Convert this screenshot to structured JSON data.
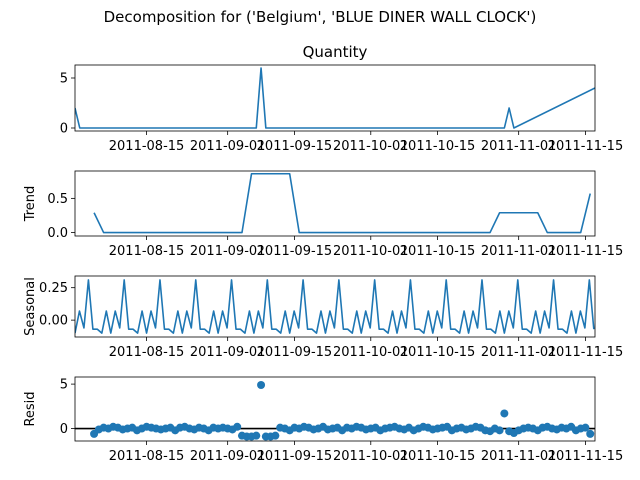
{
  "figure": {
    "suptitle": "Decomposition for ('Belgium', 'BLUE DINER WALL CLOCK')",
    "line_color": "#1f77b4",
    "zero_line_color": "#000000"
  },
  "chart_data": [
    {
      "type": "line",
      "title": "Quantity",
      "ylabel": "",
      "x_range": [
        "2011-07-31",
        "2011-11-17"
      ],
      "x_ticks": [
        "2011-08-15",
        "2011-09-01",
        "2011-09-15",
        "2011-10-01",
        "2011-10-15",
        "2011-11-01",
        "2011-11-15"
      ],
      "ylim": [
        -0.3,
        6.3
      ],
      "y_ticks": [
        0,
        5
      ],
      "y_tick_labels": [
        "0",
        "5"
      ],
      "series": [
        {
          "x": [
            "2011-07-31",
            "2011-08-01",
            "2011-09-07",
            "2011-09-08",
            "2011-09-09",
            "2011-10-29",
            "2011-10-30",
            "2011-10-31",
            "2011-11-17"
          ],
          "values": [
            2,
            0,
            0,
            6,
            0,
            0,
            2,
            0,
            4
          ]
        }
      ]
    },
    {
      "type": "line",
      "title": "",
      "ylabel": "Trend",
      "x_range": [
        "2011-07-31",
        "2011-11-17"
      ],
      "x_ticks": [
        "2011-08-15",
        "2011-09-01",
        "2011-09-15",
        "2011-10-01",
        "2011-10-15",
        "2011-11-01",
        "2011-11-15"
      ],
      "ylim": [
        -0.05,
        0.9
      ],
      "y_ticks": [
        0,
        0.5
      ],
      "y_tick_labels": [
        "0.0",
        "0.5"
      ],
      "series": [
        {
          "x": [
            "2011-08-04",
            "2011-08-06",
            "2011-09-04",
            "2011-09-06",
            "2011-09-14",
            "2011-09-16",
            "2011-10-26",
            "2011-10-28",
            "2011-11-05",
            "2011-11-07",
            "2011-11-14",
            "2011-11-16"
          ],
          "values": [
            0.29,
            0.0,
            0.0,
            0.86,
            0.86,
            0.0,
            0.0,
            0.29,
            0.29,
            0.0,
            0.0,
            0.57
          ]
        }
      ]
    },
    {
      "type": "line",
      "title": "",
      "ylabel": "Seasonal",
      "x_range": [
        "2011-07-31",
        "2011-11-17"
      ],
      "x_ticks": [
        "2011-08-15",
        "2011-09-01",
        "2011-09-15",
        "2011-10-01",
        "2011-10-15",
        "2011-11-01",
        "2011-11-15"
      ],
      "ylim": [
        -0.13,
        0.34
      ],
      "y_ticks": [
        0.25,
        0.0
      ],
      "y_tick_labels": [
        "0.25",
        "0.00"
      ],
      "seasonal_pattern": [
        -0.1,
        0.07,
        -0.06,
        0.31,
        -0.07,
        -0.07,
        -0.1,
        0.07
      ],
      "period_days": 7.5
    },
    {
      "type": "scatter",
      "title": "",
      "ylabel": "Resid",
      "x_range": [
        "2011-07-31",
        "2011-11-17"
      ],
      "x_ticks": [
        "2011-08-15",
        "2011-09-01",
        "2011-09-15",
        "2011-10-01",
        "2011-10-15",
        "2011-11-01",
        "2011-11-15"
      ],
      "ylim": [
        -1.4,
        5.8
      ],
      "y_ticks": [
        5,
        0
      ],
      "y_tick_labels": [
        "5",
        "0"
      ],
      "zero_line": true,
      "series": [
        {
          "x": [
            "2011-08-04",
            "2011-08-05",
            "2011-08-06",
            "2011-08-07",
            "2011-08-08",
            "2011-08-09",
            "2011-08-10",
            "2011-08-11",
            "2011-08-12",
            "2011-08-13",
            "2011-08-14",
            "2011-08-15",
            "2011-08-16",
            "2011-08-17",
            "2011-08-18",
            "2011-08-19",
            "2011-08-20",
            "2011-08-21",
            "2011-08-22",
            "2011-08-23",
            "2011-08-24",
            "2011-08-25",
            "2011-08-26",
            "2011-08-27",
            "2011-08-28",
            "2011-08-29",
            "2011-08-30",
            "2011-08-31",
            "2011-09-01",
            "2011-09-02",
            "2011-09-03",
            "2011-09-04",
            "2011-09-05",
            "2011-09-06",
            "2011-09-07",
            "2011-09-08",
            "2011-09-09",
            "2011-09-10",
            "2011-09-11",
            "2011-09-12",
            "2011-09-13",
            "2011-09-14",
            "2011-09-15",
            "2011-09-16",
            "2011-09-17",
            "2011-09-18",
            "2011-09-19",
            "2011-09-20",
            "2011-09-21",
            "2011-09-22",
            "2011-09-23",
            "2011-09-24",
            "2011-09-25",
            "2011-09-26",
            "2011-09-27",
            "2011-09-28",
            "2011-09-29",
            "2011-09-30",
            "2011-10-01",
            "2011-10-02",
            "2011-10-03",
            "2011-10-04",
            "2011-10-05",
            "2011-10-06",
            "2011-10-07",
            "2011-10-08",
            "2011-10-09",
            "2011-10-10",
            "2011-10-11",
            "2011-10-12",
            "2011-10-13",
            "2011-10-14",
            "2011-10-15",
            "2011-10-16",
            "2011-10-17",
            "2011-10-18",
            "2011-10-19",
            "2011-10-20",
            "2011-10-21",
            "2011-10-22",
            "2011-10-23",
            "2011-10-24",
            "2011-10-25",
            "2011-10-26",
            "2011-10-27",
            "2011-10-28",
            "2011-10-29",
            "2011-10-30",
            "2011-10-31",
            "2011-11-01",
            "2011-11-02",
            "2011-11-03",
            "2011-11-04",
            "2011-11-05",
            "2011-11-06",
            "2011-11-07",
            "2011-11-08",
            "2011-11-09",
            "2011-11-10",
            "2011-11-11",
            "2011-11-12",
            "2011-11-13",
            "2011-11-14",
            "2011-11-15",
            "2011-11-16"
          ],
          "values": [
            -0.6,
            -0.1,
            0.1,
            0.0,
            0.2,
            0.1,
            -0.1,
            0.0,
            0.1,
            -0.2,
            0.0,
            0.2,
            0.1,
            0.0,
            -0.1,
            0.0,
            0.1,
            -0.2,
            0.1,
            0.2,
            0.0,
            -0.1,
            0.1,
            0.0,
            -0.2,
            0.1,
            0.0,
            0.1,
            0.0,
            -0.1,
            0.2,
            -0.8,
            -0.9,
            -0.9,
            -0.8,
            4.9,
            -0.9,
            -0.9,
            -0.8,
            0.1,
            0.0,
            -0.2,
            0.1,
            0.0,
            0.2,
            0.1,
            -0.1,
            0.0,
            0.2,
            -0.1,
            0.0,
            0.1,
            -0.2,
            0.1,
            0.0,
            0.2,
            0.1,
            -0.1,
            0.0,
            0.1,
            -0.2,
            0.0,
            0.1,
            0.2,
            0.0,
            -0.1,
            0.1,
            -0.2,
            0.0,
            0.2,
            0.1,
            -0.1,
            0.0,
            0.1,
            0.2,
            -0.2,
            0.0,
            0.1,
            -0.1,
            0.0,
            0.2,
            0.1,
            -0.2,
            -0.3,
            0.0,
            -0.2,
            1.7,
            -0.3,
            -0.5,
            -0.2,
            0.0,
            0.1,
            0.0,
            -0.2,
            0.1,
            0.2,
            0.0,
            -0.1,
            0.1,
            0.0,
            0.2,
            -0.2,
            0.0,
            0.1,
            -0.6
          ]
        }
      ]
    }
  ]
}
